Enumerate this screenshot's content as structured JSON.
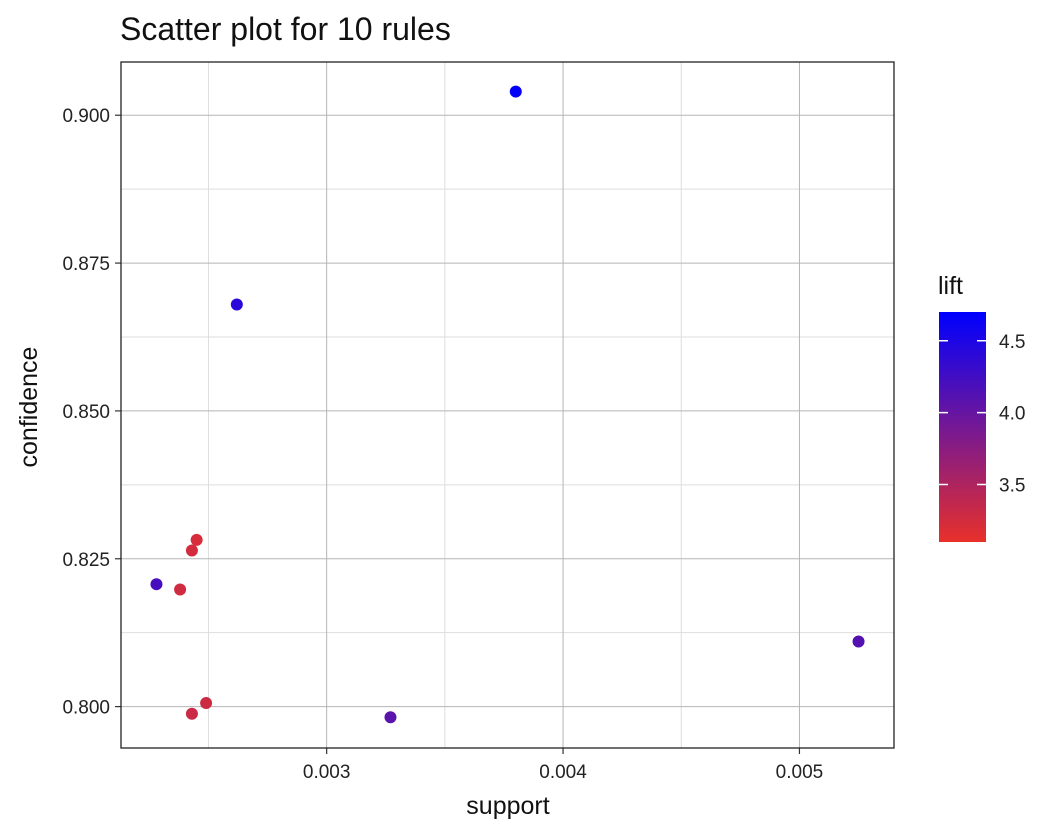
{
  "chart_data": {
    "type": "scatter",
    "title": "Scatter plot for 10 rules",
    "xlabel": "support",
    "ylabel": "confidence",
    "xlim": [
      0.00213,
      0.0054
    ],
    "ylim": [
      0.793,
      0.909
    ],
    "x_ticks": [
      0.003,
      0.004,
      0.005
    ],
    "x_tick_labels": [
      "0.003",
      "0.004",
      "0.005"
    ],
    "x_minor_ticks": [
      0.0025,
      0.0035,
      0.0045
    ],
    "y_ticks": [
      0.8,
      0.825,
      0.85,
      0.875,
      0.9
    ],
    "y_tick_labels": [
      "0.800",
      "0.825",
      "0.850",
      "0.875",
      "0.900"
    ],
    "y_minor_ticks": [
      0.8125,
      0.8375,
      0.8625,
      0.8875
    ],
    "grid": true,
    "legend": {
      "title": "lift",
      "placement": "right",
      "type": "gradient",
      "range": [
        3.1,
        4.7
      ],
      "ticks": [
        3.5,
        4.0,
        4.5
      ],
      "tick_labels": [
        "3.5",
        "4.0",
        "4.5"
      ],
      "low_color": "#e8302a",
      "high_color": "#0000ff"
    },
    "points": [
      {
        "support": 0.0038,
        "confidence": 0.904,
        "lift": 4.67
      },
      {
        "support": 0.00262,
        "confidence": 0.868,
        "lift": 4.42
      },
      {
        "support": 0.00245,
        "confidence": 0.8282,
        "lift": 3.22
      },
      {
        "support": 0.00243,
        "confidence": 0.8264,
        "lift": 3.25
      },
      {
        "support": 0.00228,
        "confidence": 0.8207,
        "lift": 4.22
      },
      {
        "support": 0.00238,
        "confidence": 0.8198,
        "lift": 3.27
      },
      {
        "support": 0.00525,
        "confidence": 0.811,
        "lift": 4.12
      },
      {
        "support": 0.00249,
        "confidence": 0.8006,
        "lift": 3.29
      },
      {
        "support": 0.00243,
        "confidence": 0.7988,
        "lift": 3.31
      },
      {
        "support": 0.00327,
        "confidence": 0.7982,
        "lift": 4.08
      }
    ]
  }
}
